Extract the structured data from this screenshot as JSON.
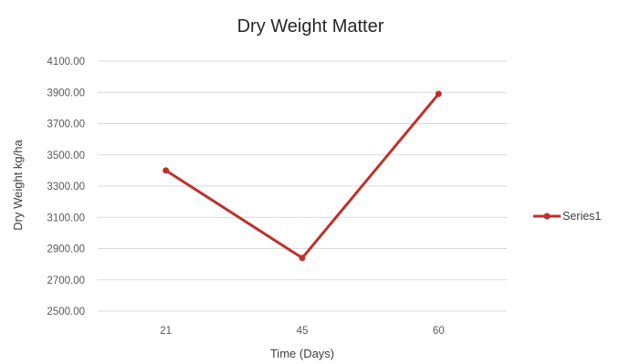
{
  "chart_data": {
    "type": "line",
    "title": "Dry Weight Matter",
    "xlabel": "Time (Days)",
    "ylabel": "Dry Weight kg/ha",
    "categories": [
      "21",
      "45",
      "60"
    ],
    "series": [
      {
        "name": "Series1",
        "values": [
          3400,
          2840,
          3890
        ],
        "color": "#c0302b"
      }
    ],
    "ylim": [
      2500,
      4100
    ],
    "yticks": [
      2500,
      2700,
      2900,
      3100,
      3300,
      3500,
      3700,
      3900,
      4100
    ],
    "ytick_labels": [
      "2500.00",
      "2700.00",
      "2900.00",
      "3100.00",
      "3300.00",
      "3500.00",
      "3700.00",
      "3900.00",
      "4100.00"
    ],
    "grid": true,
    "legend_position": "right",
    "gridline_color": "#d9d9d9"
  }
}
